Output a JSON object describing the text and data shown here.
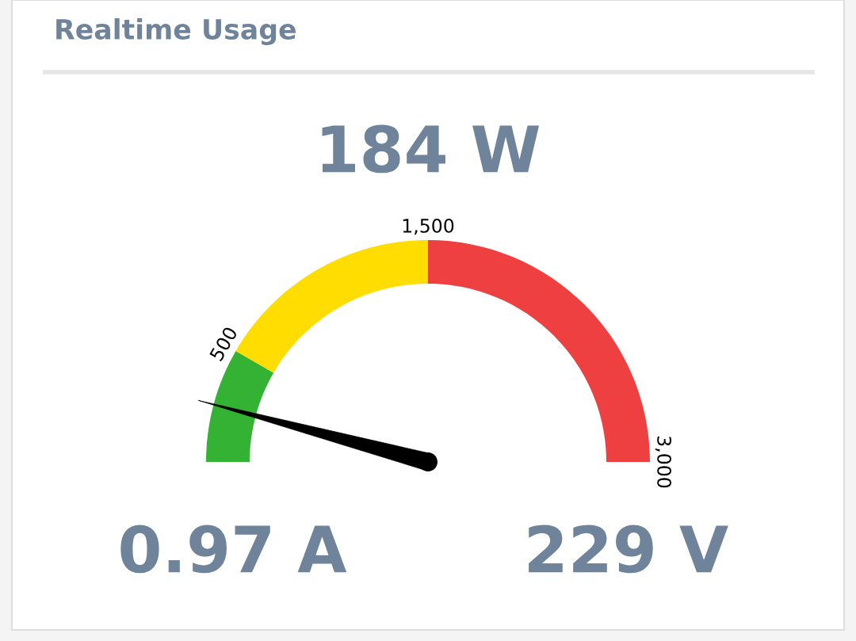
{
  "chart_data": {
    "type": "donut",
    "title": "Realtime Usage",
    "categories": [
      "500",
      "1,500",
      "3,000"
    ],
    "values": [
      500,
      1000,
      1500
    ],
    "colors": [
      "#34b233",
      "#ffdd00",
      "#ee4040"
    ],
    "needle": "500",
    "annotations": [
      "184 W",
      "0.97 A",
      "229 V"
    ]
  }
}
